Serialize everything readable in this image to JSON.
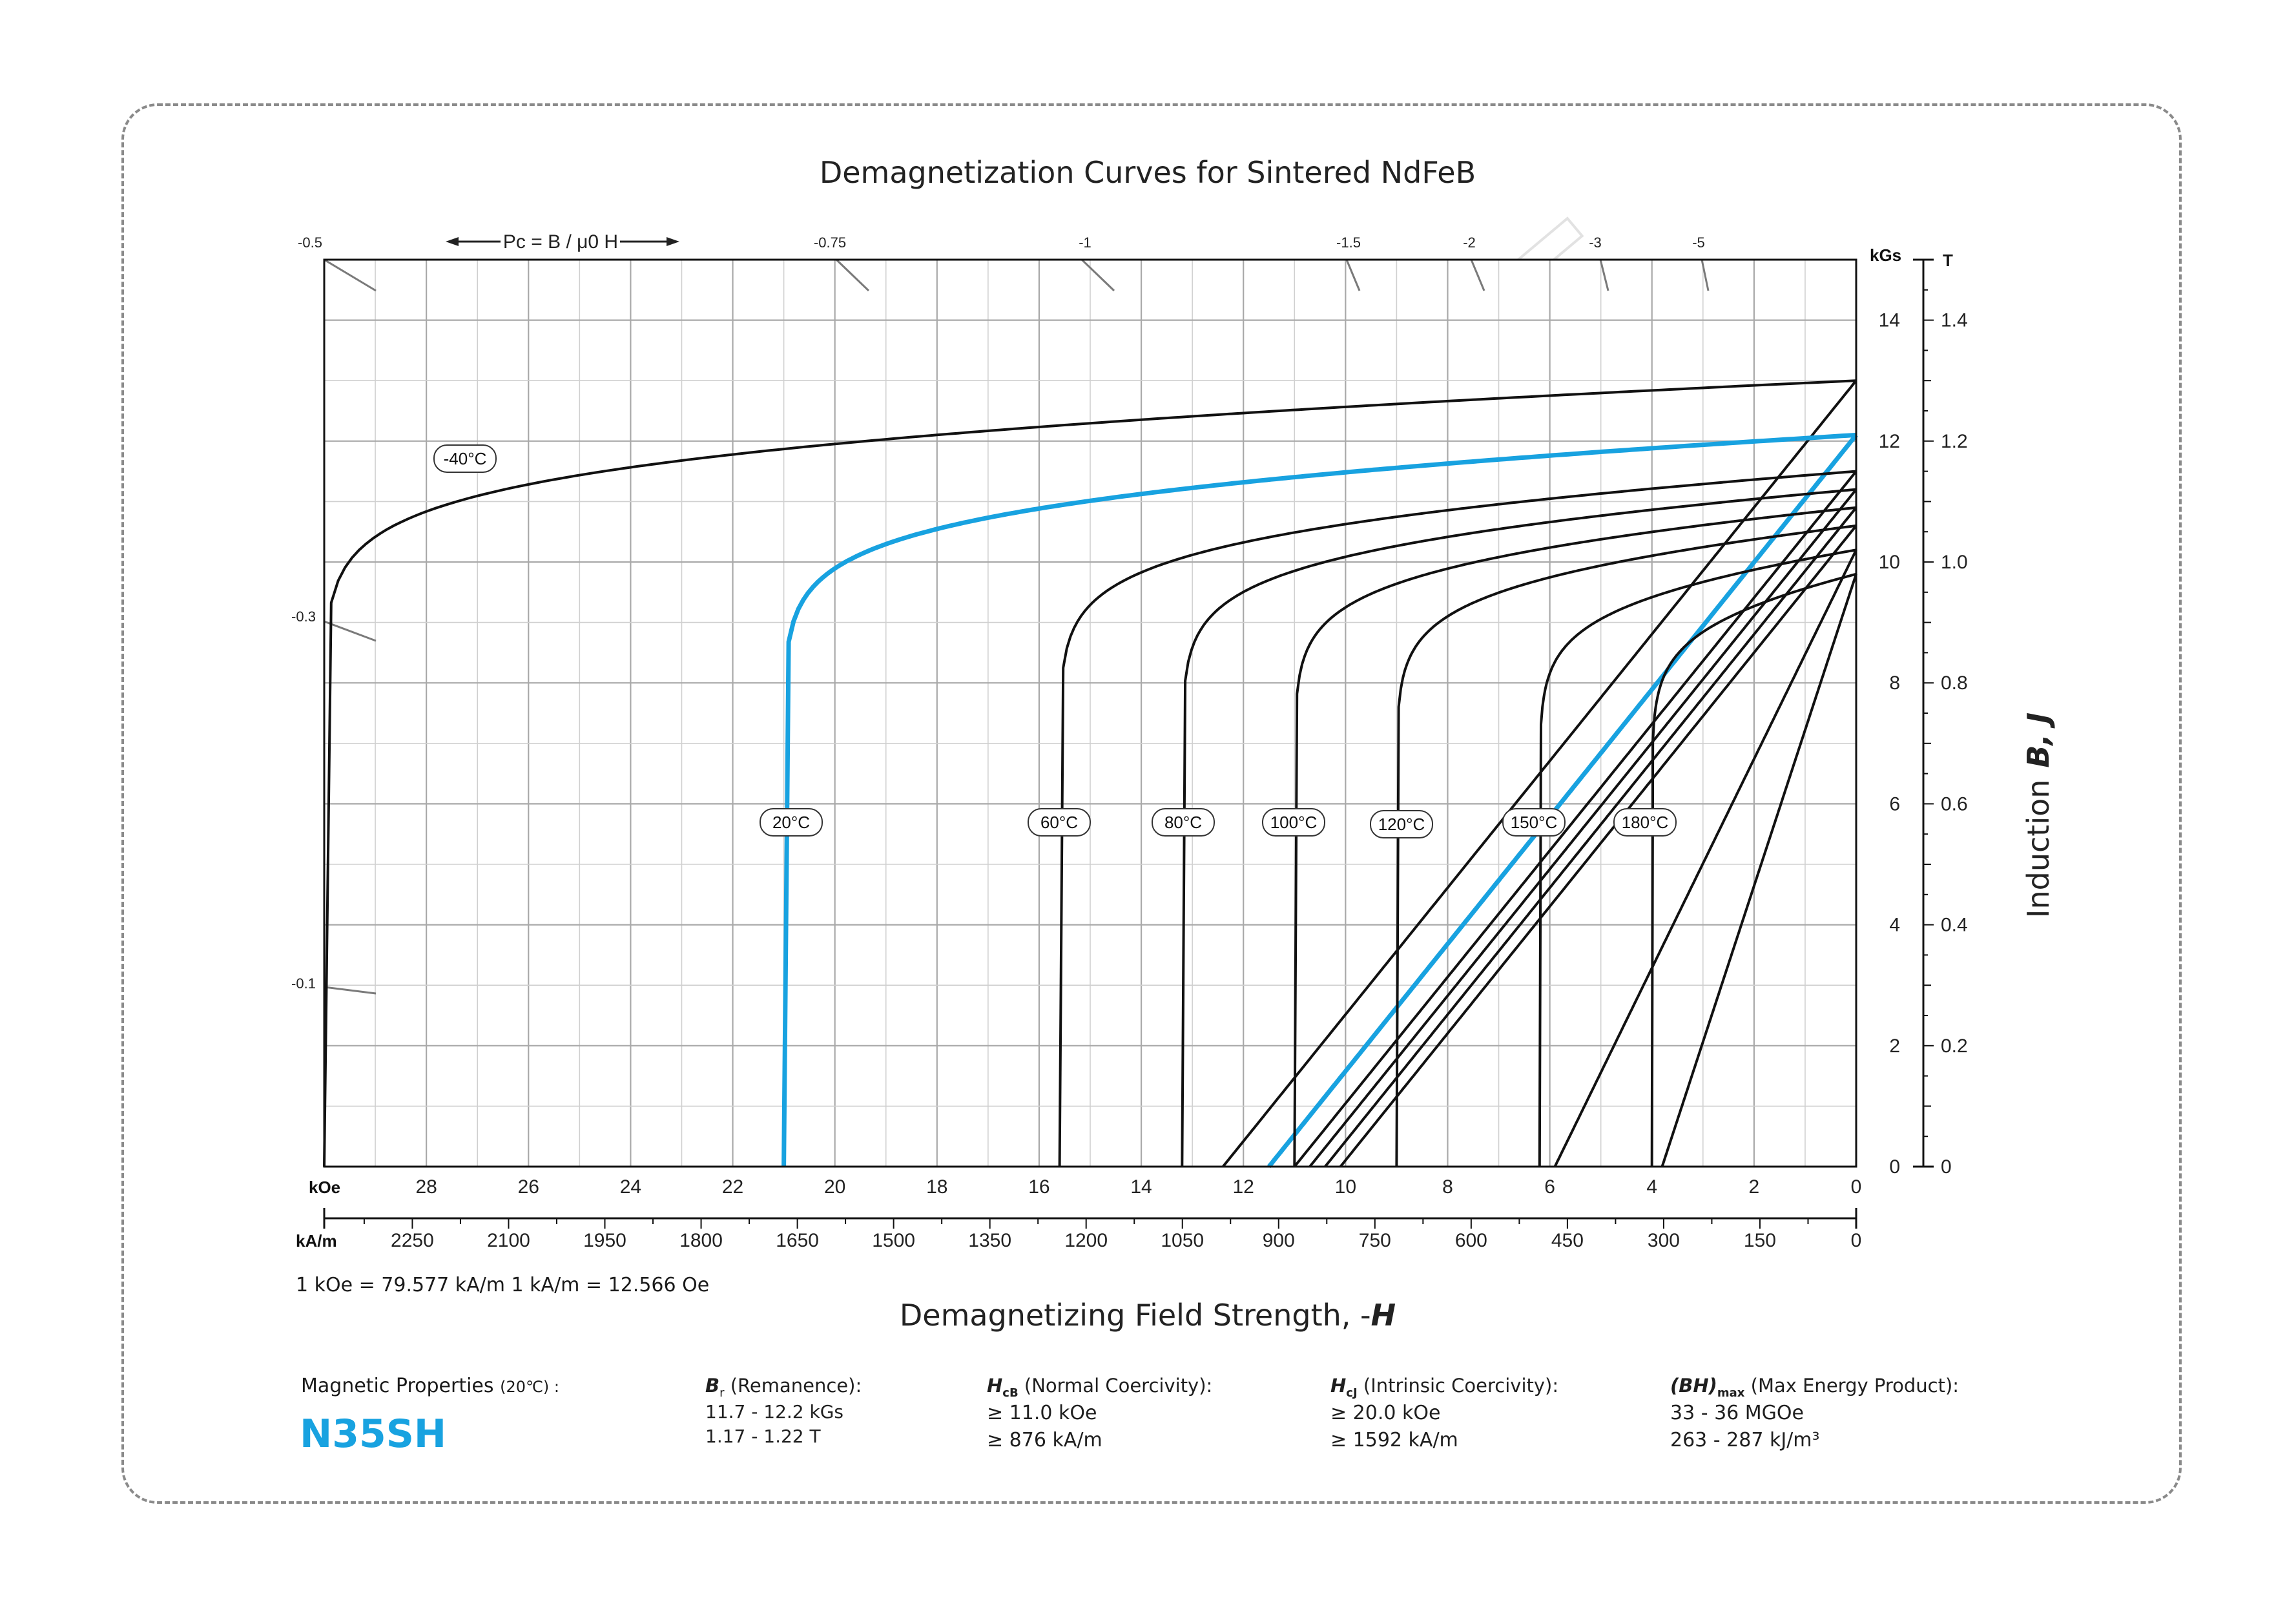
{
  "title": "Demagnetization Curves for Sintered NdFeB",
  "permeance": {
    "label": "Pc = B / μ0 H",
    "ticks": [
      "-0.5",
      "-0.75",
      "-1",
      "-1.5",
      "-2",
      "-3",
      "-5",
      "-0.3",
      "-0.1"
    ]
  },
  "watermark": "QUADRANT",
  "axes": {
    "koe_unit": "kOe",
    "koe_ticks": [
      "28",
      "26",
      "24",
      "22",
      "20",
      "18",
      "16",
      "14",
      "12",
      "10",
      "8",
      "6",
      "4",
      "2",
      "0"
    ],
    "kam_unit": "kA/m",
    "kam_ticks": [
      "2250",
      "2100",
      "1950",
      "1800",
      "1650",
      "1500",
      "1350",
      "1200",
      "1050",
      "900",
      "750",
      "600",
      "450",
      "300",
      "150",
      "0"
    ],
    "kgs_unit": "kGs",
    "kgs_ticks": [
      "14",
      "12",
      "10",
      "8",
      "6",
      "4",
      "2",
      "0"
    ],
    "t_unit": "T",
    "t_ticks": [
      "1.4",
      "1.2",
      "1.0",
      "0.8",
      "0.6",
      "0.4",
      "0.2",
      "0"
    ],
    "conversion": "1 kOe = 79.577 kA/m   1 kA/m = 12.566 Oe",
    "xlabel_text": "Demagnetizing Field Strength, -",
    "xlabel_var": "H",
    "ylabel_text": "Induction",
    "ylabel_var": "B, J"
  },
  "chart_data": {
    "type": "line",
    "title": "Demagnetization Curves for Sintered NdFeB",
    "x_unit": "kOe (demagnetizing field, -H)",
    "y_unit": "kGs",
    "xlim": [
      30,
      0
    ],
    "ylim": [
      0,
      15
    ],
    "grid": true,
    "highlight_color": "#18a2e0",
    "series": [
      {
        "name": "-40°C",
        "Br": 13.0,
        "HcJ": 30.0,
        "HcB": 12.4,
        "highlight": false
      },
      {
        "name": "20°C",
        "Br": 12.1,
        "HcJ": 21.0,
        "HcB": 11.5,
        "highlight": true
      },
      {
        "name": "60°C",
        "Br": 11.5,
        "HcJ": 15.6,
        "HcB": 11.0,
        "highlight": false
      },
      {
        "name": "80°C",
        "Br": 11.2,
        "HcJ": 13.2,
        "HcB": 10.7,
        "highlight": false
      },
      {
        "name": "100°C",
        "Br": 10.9,
        "HcJ": 11.0,
        "HcB": 10.4,
        "highlight": false
      },
      {
        "name": "120°C",
        "Br": 10.6,
        "HcJ": 9.0,
        "HcB": 10.1,
        "highlight": false
      },
      {
        "name": "150°C",
        "Br": 10.2,
        "HcJ": 6.2,
        "HcB": 5.9,
        "highlight": false
      },
      {
        "name": "180°C",
        "Br": 9.8,
        "HcJ": 4.0,
        "HcB": 3.8,
        "highlight": false
      }
    ]
  },
  "properties": {
    "label": "Magnetic Properties",
    "label_temp": "(20℃) :",
    "grade": "N35SH",
    "br_sym": "B",
    "br_sub": "r",
    "br_name": "(Remanence):",
    "br_kgs": "11.7 - 12.2 kGs",
    "br_t": "1.17 - 1.22 T",
    "hcb_sym": "H",
    "hcb_sub": "cB",
    "hcb_name": "(Normal Coercivity):",
    "hcb_koe": "≥ 11.0 kOe",
    "hcb_kam": "≥ 876 kA/m",
    "hcj_sym": "H",
    "hcj_sub": "cJ",
    "hcj_name": "(Intrinsic Coercivity):",
    "hcj_koe": "≥ 20.0 kOe",
    "hcj_kam": "≥ 1592 kA/m",
    "bh_sym": "(BH)",
    "bh_sub": "max",
    "bh_name": "(Max Energy Product):",
    "bh_mgoe": "33 - 36 MGOe",
    "bh_kj": "263 - 287 kJ/m³"
  }
}
